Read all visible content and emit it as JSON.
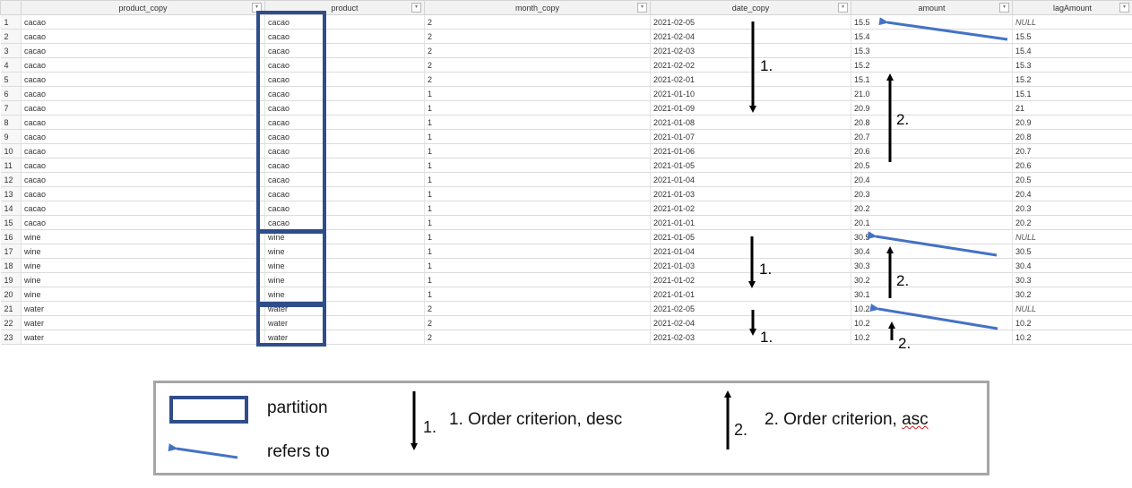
{
  "table": {
    "columns": [
      "product_copy",
      "product",
      "month_copy",
      "date_copy",
      "amount",
      "lagAmount"
    ],
    "filter_icon": "filter-icon",
    "rows": [
      [
        "1",
        "cacao",
        "cacao",
        "2",
        "2021-02-05",
        "15.5",
        "NULL"
      ],
      [
        "2",
        "cacao",
        "cacao",
        "2",
        "2021-02-04",
        "15.4",
        "15.5"
      ],
      [
        "3",
        "cacao",
        "cacao",
        "2",
        "2021-02-03",
        "15.3",
        "15.4"
      ],
      [
        "4",
        "cacao",
        "cacao",
        "2",
        "2021-02-02",
        "15.2",
        "15.3"
      ],
      [
        "5",
        "cacao",
        "cacao",
        "2",
        "2021-02-01",
        "15.1",
        "15.2"
      ],
      [
        "6",
        "cacao",
        "cacao",
        "1",
        "2021-01-10",
        "21.0",
        "15.1"
      ],
      [
        "7",
        "cacao",
        "cacao",
        "1",
        "2021-01-09",
        "20.9",
        "21"
      ],
      [
        "8",
        "cacao",
        "cacao",
        "1",
        "2021-01-08",
        "20.8",
        "20.9"
      ],
      [
        "9",
        "cacao",
        "cacao",
        "1",
        "2021-01-07",
        "20.7",
        "20.8"
      ],
      [
        "10",
        "cacao",
        "cacao",
        "1",
        "2021-01-06",
        "20.6",
        "20.7"
      ],
      [
        "11",
        "cacao",
        "cacao",
        "1",
        "2021-01-05",
        "20.5",
        "20.6"
      ],
      [
        "12",
        "cacao",
        "cacao",
        "1",
        "2021-01-04",
        "20.4",
        "20.5"
      ],
      [
        "13",
        "cacao",
        "cacao",
        "1",
        "2021-01-03",
        "20.3",
        "20.4"
      ],
      [
        "14",
        "cacao",
        "cacao",
        "1",
        "2021-01-02",
        "20.2",
        "20.3"
      ],
      [
        "15",
        "cacao",
        "cacao",
        "1",
        "2021-01-01",
        "20.1",
        "20.2"
      ],
      [
        "16",
        "wine",
        "wine",
        "1",
        "2021-01-05",
        "30.5",
        "NULL"
      ],
      [
        "17",
        "wine",
        "wine",
        "1",
        "2021-01-04",
        "30.4",
        "30.5"
      ],
      [
        "18",
        "wine",
        "wine",
        "1",
        "2021-01-03",
        "30.3",
        "30.4"
      ],
      [
        "19",
        "wine",
        "wine",
        "1",
        "2021-01-02",
        "30.2",
        "30.3"
      ],
      [
        "20",
        "wine",
        "wine",
        "1",
        "2021-01-01",
        "30.1",
        "30.2"
      ],
      [
        "21",
        "water",
        "water",
        "2",
        "2021-02-05",
        "10.2",
        "NULL"
      ],
      [
        "22",
        "water",
        "water",
        "2",
        "2021-02-04",
        "10.2",
        "10.2"
      ],
      [
        "23",
        "water",
        "water",
        "2",
        "2021-02-03",
        "10.2",
        "10.2"
      ]
    ]
  },
  "annotations": {
    "label_1": "1.",
    "label_2": "2.",
    "partition_color": "#2f4d8a",
    "refers_color": "#4472c4"
  },
  "legend": {
    "partition": "partition",
    "refers_to": "refers to",
    "desc_num": "1.",
    "desc_text": "1. Order criterion, desc",
    "asc_num": "2.",
    "asc_text_prefix": "2. Order criterion, ",
    "asc_text_word": "asc"
  }
}
